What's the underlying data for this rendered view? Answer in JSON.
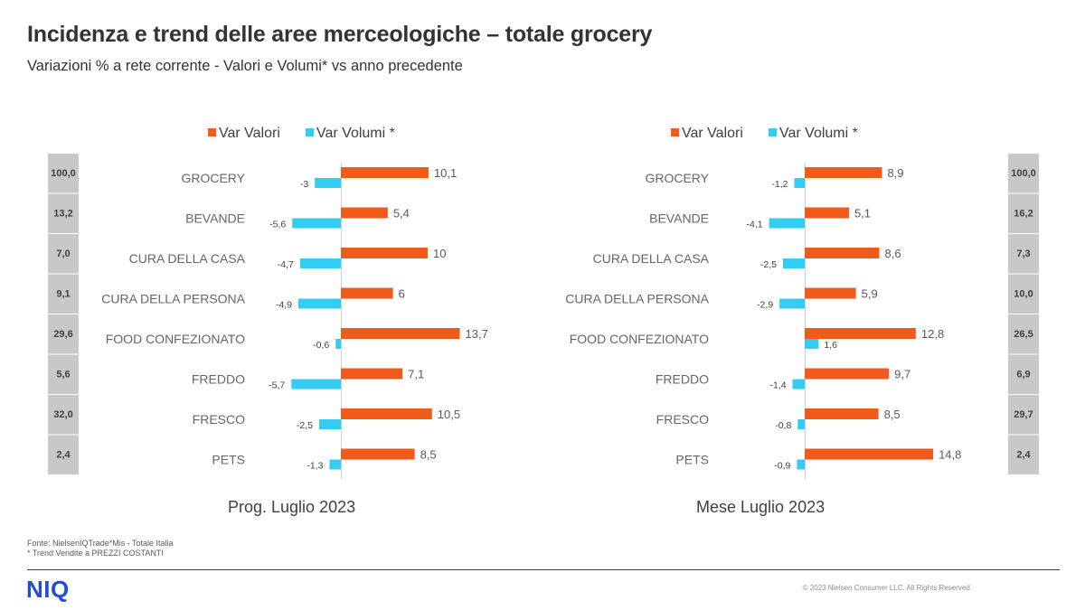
{
  "title": "Incidenza e trend delle aree merceologiche – totale grocery",
  "subtitle": "Variazioni  % a rete corrente - Valori e Volumi*  vs anno precedente",
  "colors": {
    "valori": "#ee5b1b",
    "volumi": "#33ccf2",
    "share_box": "#c8c8c8"
  },
  "legend": {
    "valori": "Var Valori",
    "volumi": "Var Volumi *"
  },
  "chart_data": [
    {
      "type": "bar",
      "orientation": "horizontal",
      "period": "Prog. Luglio 2023",
      "categories": [
        "GROCERY",
        "BEVANDE",
        "CURA DELLA CASA",
        "CURA DELLA PERSONA",
        "FOOD CONFEZIONATO",
        "FREDDO",
        "FRESCO",
        "PETS"
      ],
      "share": [
        "100,0",
        "13,2",
        "7,0",
        "9,1",
        "29,6",
        "5,6",
        "32,0",
        "2,4"
      ],
      "series": [
        {
          "name": "Var Valori",
          "values": [
            10.1,
            5.4,
            10,
            6,
            13.7,
            7.1,
            10.5,
            8.5
          ],
          "labels": [
            "10,1",
            "5,4",
            "10",
            "6",
            "13,7",
            "7,1",
            "10,5",
            "8,5"
          ]
        },
        {
          "name": "Var Volumi *",
          "values": [
            -3,
            -5.6,
            -4.7,
            -4.9,
            -0.6,
            -5.7,
            -2.5,
            -1.3
          ],
          "labels": [
            "-3",
            "-5,6",
            "-4,7",
            "-4,9",
            "-0,6",
            "-5,7",
            "-2,5",
            "-1,3"
          ]
        }
      ]
    },
    {
      "type": "bar",
      "orientation": "horizontal",
      "period": "Mese Luglio 2023",
      "categories": [
        "GROCERY",
        "BEVANDE",
        "CURA DELLA CASA",
        "CURA DELLA PERSONA",
        "FOOD CONFEZIONATO",
        "FREDDO",
        "FRESCO",
        "PETS"
      ],
      "share": [
        "100,0",
        "16,2",
        "7,3",
        "10,0",
        "26,5",
        "6,9",
        "29,7",
        "2,4"
      ],
      "series": [
        {
          "name": "Var Valori",
          "values": [
            8.9,
            5.1,
            8.6,
            5.9,
            12.8,
            9.7,
            8.5,
            14.8
          ],
          "labels": [
            "8,9",
            "5,1",
            "8,6",
            "5,9",
            "12,8",
            "9,7",
            "8,5",
            "14,8"
          ]
        },
        {
          "name": "Var Volumi *",
          "values": [
            -1.2,
            -4.1,
            -2.5,
            -2.9,
            1.6,
            -1.4,
            -0.8,
            -0.9
          ],
          "labels": [
            "-1,2",
            "-4,1",
            "-2,5",
            "-2,9",
            "1,6",
            "-1,4",
            "-0,8",
            "-0,9"
          ]
        }
      ]
    }
  ],
  "footnotes": [
    "Fonte: NielsenIQTrade*Mis  - Totale Italia",
    "* Trend Vendite a PREZZI COSTANTI"
  ],
  "logo": "NIQ",
  "copyright": "© 2023 Nielsen Consumer LLC. All Rights Reserved."
}
